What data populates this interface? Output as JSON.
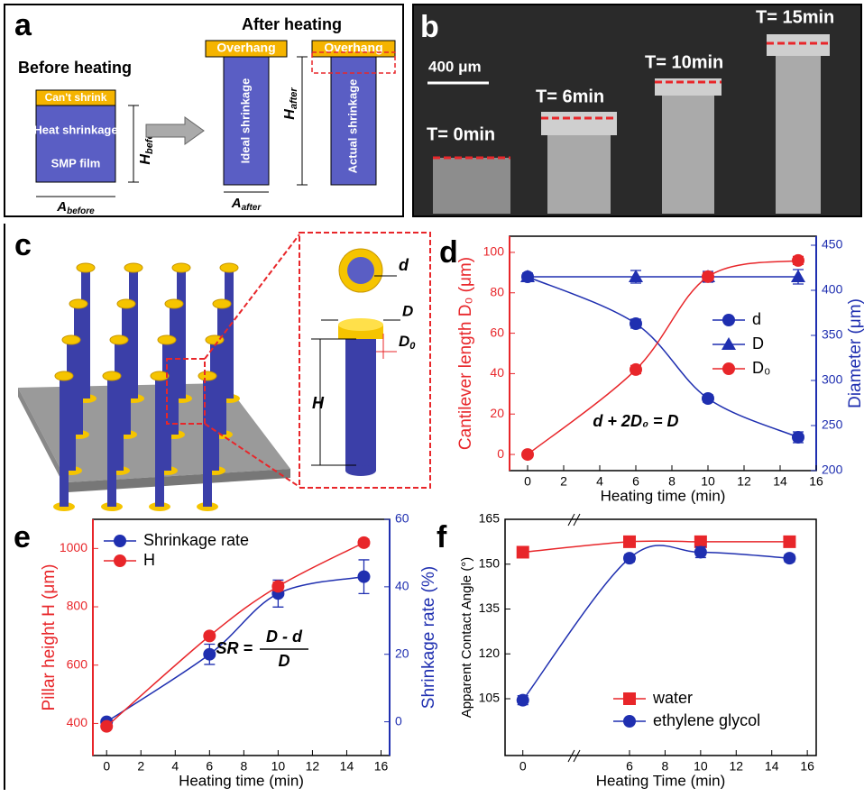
{
  "panel_a": {
    "letter": "a",
    "after_title": "After heating",
    "before_title": "Before heating",
    "cant_shrink": "Can't shrink",
    "heat_shrinkage": "Heat shrinkage",
    "smp_film": "SMP film",
    "overhang_ideal": "Overhang",
    "overhang_actual": "Overhang",
    "ideal": "Ideal shrinkage",
    "actual": "Actual shrinkage",
    "h_before": {
      "main": "H",
      "sub": "before"
    },
    "a_before": {
      "main": "A",
      "sub": "before"
    },
    "a_after": {
      "main": "A",
      "sub": "after"
    },
    "h_after": {
      "main": "H",
      "sub": "after"
    }
  },
  "panel_b": {
    "letter": "b",
    "scale": "400 μm",
    "labels": [
      "T= 0min",
      "T= 6min",
      "T= 10min",
      "T= 15min"
    ]
  },
  "panel_c": {
    "letter": "c",
    "d": "d",
    "D": "D",
    "D0": {
      "main": "D",
      "sub": "0"
    },
    "H": "H"
  },
  "chart_data": [
    {
      "type": "line",
      "panel": "d",
      "xlabel": "Heating time (min)",
      "ylabel": "Cantilever length D₀ (μm)",
      "y2label": "Diameter (μm)",
      "annotation": "d + 2D₀ = D",
      "xlim": [
        -1,
        16
      ],
      "xticks": [
        0,
        2,
        4,
        6,
        8,
        10,
        12,
        14,
        16
      ],
      "ylim": [
        -8,
        108
      ],
      "yticks": [
        0,
        20,
        40,
        60,
        80,
        100
      ],
      "y2lim": [
        200,
        460
      ],
      "y2ticks": [
        200,
        250,
        300,
        350,
        400,
        450
      ],
      "ycolor": "#e8262a",
      "y2color": "#1f2fb0",
      "legend": "center right",
      "x": [
        0,
        6,
        10,
        15
      ],
      "series": [
        {
          "name": "d",
          "color": "#1f2fb0",
          "marker": "circle",
          "axis": "y2",
          "values": [
            415,
            363,
            280,
            237
          ],
          "errors": [
            4,
            5,
            4,
            6
          ]
        },
        {
          "name": "D",
          "color": "#1f2fb0",
          "marker": "triangle",
          "axis": "y2",
          "values": [
            415,
            415,
            415,
            415
          ],
          "errors": [
            4,
            7,
            6,
            8
          ]
        },
        {
          "name": "D₀",
          "color": "#e8262a",
          "marker": "circle",
          "values": [
            0,
            42,
            88,
            96
          ],
          "errors": [
            1,
            2,
            2,
            2
          ]
        }
      ]
    },
    {
      "type": "line",
      "panel": "e",
      "xlabel": "Heating time (min)",
      "ylabel": "Pillar height H (μm)",
      "y2label": "Shrinkage rate (%)",
      "annotation": {
        "lhs": "SR =",
        "num": "D - d",
        "den": "D"
      },
      "xlim": [
        -0.8,
        16.5
      ],
      "xticks": [
        0,
        2,
        4,
        6,
        8,
        10,
        12,
        14,
        16
      ],
      "ylim": [
        290,
        1100
      ],
      "yticks": [
        400,
        600,
        800,
        1000
      ],
      "y2lim": [
        -10,
        60
      ],
      "y2ticks": [
        0,
        20,
        40,
        60
      ],
      "ycolor": "#e8262a",
      "y2color": "#1f2fb0",
      "legend": "upper left",
      "x": [
        0,
        6,
        10,
        15
      ],
      "series": [
        {
          "name": "Shrinkage rate",
          "color": "#1f2fb0",
          "marker": "circle",
          "axis": "y2",
          "values": [
            0,
            20,
            38,
            43
          ],
          "errors": [
            0,
            3,
            4,
            5
          ]
        },
        {
          "name": "H",
          "color": "#e8262a",
          "marker": "circle",
          "values": [
            390,
            700,
            870,
            1020
          ],
          "errors": [
            5,
            10,
            15,
            12
          ]
        }
      ]
    },
    {
      "type": "line",
      "panel": "f",
      "xlabel": "Heating Time (min)",
      "ylabel": "Apparent Contact Angle (°)",
      "xlim": [
        -1,
        16.5
      ],
      "xticks": [
        0,
        6,
        8,
        10,
        12,
        14,
        16
      ],
      "ylim": [
        86,
        165
      ],
      "yticks": [
        105,
        120,
        135,
        150,
        165
      ],
      "legend": "lower right",
      "x": [
        0,
        6,
        10,
        15
      ],
      "series": [
        {
          "name": "water",
          "color": "#e8262a",
          "marker": "square",
          "values": [
            154,
            157.5,
            157.5,
            157.5
          ],
          "errors": [
            1.5,
            1.2,
            1.2,
            1.2
          ]
        },
        {
          "name": "ethylene glycol",
          "color": "#1f2fb0",
          "marker": "circle",
          "values": [
            104.5,
            152,
            154,
            152
          ],
          "errors": [
            1.5,
            1.2,
            1.8,
            1.2
          ]
        }
      ]
    }
  ]
}
